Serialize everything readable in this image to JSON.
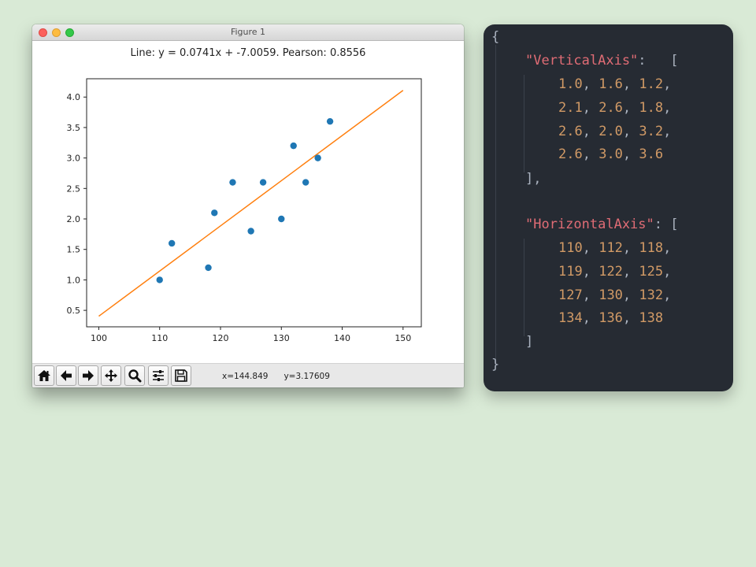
{
  "window": {
    "title": "Figure 1"
  },
  "chart_data": {
    "type": "scatter",
    "title": "Line: y = 0.0741x + -7.0059. Pearson: 0.8556",
    "x": [
      110,
      112,
      118,
      119,
      122,
      125,
      127,
      130,
      132,
      134,
      136,
      138
    ],
    "y": [
      1.0,
      1.6,
      1.2,
      2.1,
      2.6,
      1.8,
      2.6,
      2.0,
      3.2,
      2.6,
      3.0,
      3.6
    ],
    "fit_line": {
      "slope": 0.0741,
      "intercept": -7.0059,
      "x_range": [
        100,
        150
      ]
    },
    "xlim": [
      98,
      153
    ],
    "ylim": [
      0.23,
      4.3
    ],
    "xticks": [
      "100",
      "110",
      "120",
      "130",
      "140",
      "150"
    ],
    "yticks": [
      "0.5",
      "1.0",
      "1.5",
      "2.0",
      "2.5",
      "3.0",
      "3.5",
      "4.0"
    ],
    "grid": false,
    "colors": {
      "points": "#1f77b4",
      "line": "#ff7f0e"
    }
  },
  "toolbar": {
    "buttons": [
      {
        "icon": "home-icon"
      },
      {
        "icon": "arrow-left-icon"
      },
      {
        "icon": "arrow-right-icon"
      },
      {
        "icon": "pan-icon"
      },
      {
        "icon": "zoom-icon"
      },
      {
        "icon": "configure-subplots-icon"
      },
      {
        "icon": "save-icon"
      }
    ],
    "coords": "x=144.849      y=3.17609"
  },
  "code_panel": {
    "open_brace": "{",
    "vertical_key": "\"VerticalAxis\"",
    "vertical_colon": ":",
    "vertical_open": "[",
    "vertical_rows": [
      [
        "1.0",
        "1.6",
        "1.2"
      ],
      [
        "2.1",
        "2.6",
        "1.8"
      ],
      [
        "2.6",
        "2.0",
        "3.2"
      ],
      [
        "2.6",
        "3.0",
        "3.6"
      ]
    ],
    "vertical_close": "],",
    "horizontal_key": "\"HorizontalAxis\"",
    "horizontal_colon": ":",
    "horizontal_open": "[",
    "horizontal_rows": [
      [
        "110",
        "112",
        "118"
      ],
      [
        "119",
        "122",
        "125"
      ],
      [
        "127",
        "130",
        "132"
      ],
      [
        "134",
        "136",
        "138"
      ]
    ],
    "horizontal_close": "]",
    "close_brace": "}"
  }
}
